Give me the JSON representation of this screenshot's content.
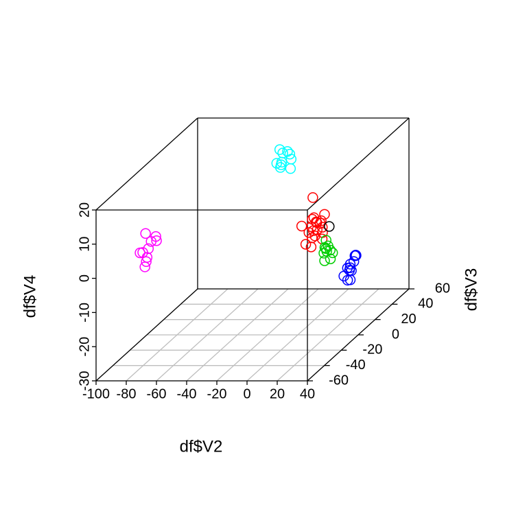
{
  "chart_data": {
    "type": "scatter3d",
    "xlabel": "df$V2",
    "ylabel": "df$V3",
    "zlabel": "df$V4",
    "xlim": [
      -100,
      40
    ],
    "ylim": [
      -60,
      60
    ],
    "zlim": [
      -30,
      20
    ],
    "xticks": [
      -100,
      -80,
      -60,
      -40,
      -20,
      0,
      20,
      40
    ],
    "yticks": [
      -60,
      -40,
      -20,
      0,
      20,
      40,
      60
    ],
    "zticks": [
      -30,
      -20,
      -10,
      0,
      10,
      20
    ],
    "grid": true,
    "series": [
      {
        "color": "#ff00ff",
        "x": [
          -70,
          -68,
          -72,
          -66,
          -69,
          -71,
          -67,
          -73,
          -69,
          -65
        ],
        "y": [
          -55,
          -52,
          -58,
          -50,
          -56,
          -54,
          -57,
          -53,
          -55,
          -51
        ],
        "z": [
          12,
          9,
          7,
          10,
          4,
          2,
          8,
          6,
          5,
          9
        ]
      },
      {
        "color": "#00ffff",
        "x": [
          -40,
          -36,
          -38,
          -33,
          -39,
          -35,
          -42,
          -37,
          -34,
          -38
        ],
        "y": [
          50,
          52,
          48,
          51,
          49,
          53,
          50,
          47,
          52,
          50
        ],
        "z": [
          13,
          12,
          9,
          10,
          8,
          11,
          9,
          10,
          7,
          12
        ]
      },
      {
        "color": "#ff0000",
        "x": [
          -8,
          -5,
          -2,
          -10,
          -12,
          0,
          -6,
          -3,
          -9,
          -4,
          2,
          -7,
          -11,
          -1,
          -5,
          -8,
          -3,
          1,
          -6,
          -10
        ],
        "y": [
          32,
          28,
          30,
          34,
          26,
          29,
          31,
          27,
          33,
          30,
          28,
          35,
          29,
          31,
          26,
          30,
          33,
          27,
          29,
          31
        ],
        "z": [
          3,
          -2,
          -4,
          -6,
          -4,
          -5,
          -8,
          -3,
          -9,
          -6,
          -1,
          -5,
          -10,
          -7,
          -2,
          -11,
          -4,
          -8,
          -6,
          -7
        ]
      },
      {
        "color": "#00cd00",
        "x": [
          12,
          15,
          13,
          17,
          10,
          16,
          14,
          11,
          18,
          13
        ],
        "y": [
          12,
          9,
          11,
          8,
          13,
          10,
          7,
          12,
          9,
          10
        ],
        "z": [
          -5,
          -6,
          -8,
          -7,
          -9,
          -10,
          -6,
          -11,
          -8,
          -7
        ]
      },
      {
        "color": "#0000ff",
        "x": [
          30,
          33,
          28,
          35,
          31,
          36,
          34,
          32,
          38,
          35,
          37,
          33
        ],
        "y": [
          14,
          10,
          12,
          6,
          8,
          2,
          -2,
          4,
          -6,
          -8,
          -4,
          0
        ],
        "z": [
          -10,
          -9,
          -12,
          -8,
          -13,
          -9,
          -10,
          -12,
          -9,
          -11,
          -13,
          -14
        ]
      },
      {
        "color": "#000000",
        "x": [
          4
        ],
        "y": [
          30
        ],
        "z": [
          -5
        ]
      }
    ]
  }
}
